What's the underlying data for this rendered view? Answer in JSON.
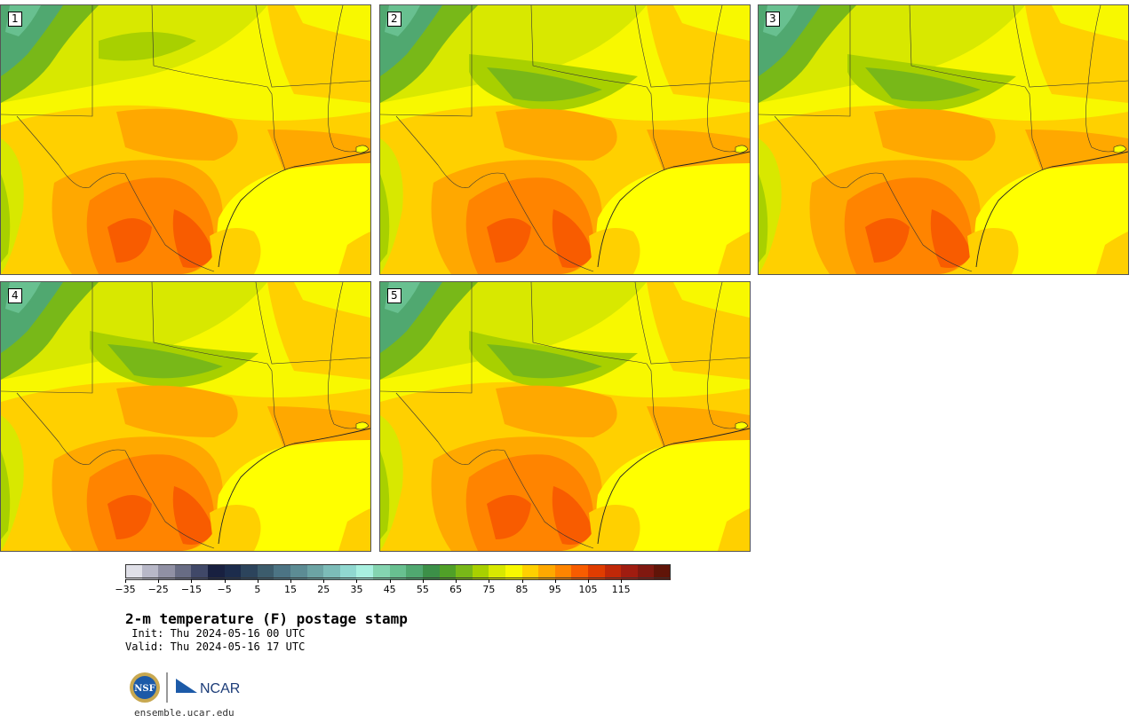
{
  "panels": [
    {
      "number": "1",
      "variant": 0
    },
    {
      "number": "2",
      "variant": 1
    },
    {
      "number": "3",
      "variant": 2
    },
    {
      "number": "4",
      "variant": 3
    },
    {
      "number": "5",
      "variant": 4
    }
  ],
  "colorbar": {
    "colors": [
      "#e0e0e8",
      "#b8b8c8",
      "#9090a4",
      "#686c84",
      "#404868",
      "#182040",
      "#1c2c4c",
      "#2c445c",
      "#3c5c6c",
      "#4c7484",
      "#5c8c94",
      "#6ca4a4",
      "#7cbcb8",
      "#90d8d0",
      "#a8f0e0",
      "#84d4b0",
      "#68c090",
      "#50a870",
      "#3c9048",
      "#50a028",
      "#78b818",
      "#a8d000",
      "#d8e800",
      "#f8f800",
      "#ffd000",
      "#ffa800",
      "#ff8400",
      "#f85c00",
      "#e03c00",
      "#c02808",
      "#a01c10",
      "#801810",
      "#601408"
    ],
    "tick_labels": [
      "−35",
      "−25",
      "−15",
      "−5",
      "5",
      "15",
      "25",
      "35",
      "45",
      "55",
      "65",
      "75",
      "85",
      "95",
      "105",
      "115"
    ]
  },
  "title": "2-m temperature (F) postage stamp",
  "init": " Init: Thu 2024-05-16 00 UTC",
  "valid": "Valid: Thu 2024-05-16 17 UTC",
  "logos": {
    "left": "NSF",
    "right": "NCAR"
  },
  "site": "ensemble.ucar.edu"
}
